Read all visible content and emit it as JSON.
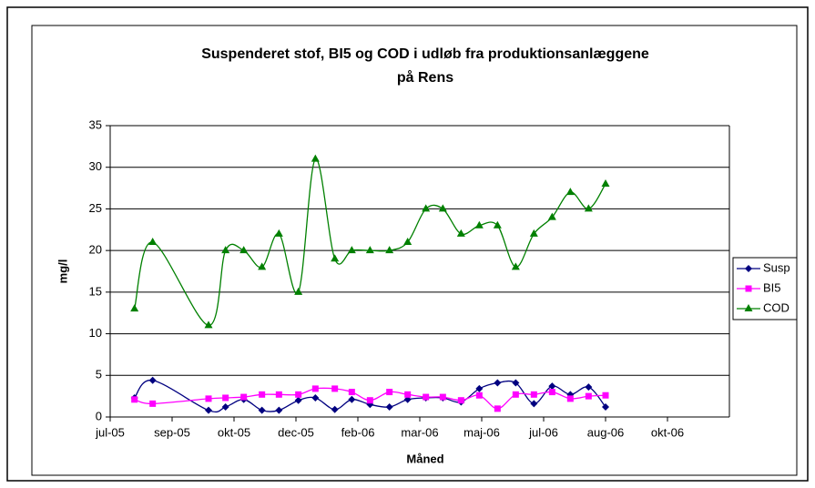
{
  "chart_data": {
    "type": "line",
    "title": [
      "Suspenderet stof, BI5 og COD i udløb fra produktionsanlæggene",
      "på Rens"
    ],
    "x_label": "Måned",
    "y_label": "mg/l",
    "x": [
      38554,
      38569,
      38615,
      38629,
      38644,
      38659,
      38673,
      38689,
      38703,
      38719,
      38733,
      38748,
      38764,
      38779,
      38794,
      38808,
      38823,
      38838,
      38853,
      38868,
      38883,
      38898,
      38913,
      38928,
      38942
    ],
    "series": [
      {
        "name": "Susp",
        "color": "#000080",
        "marker": "diamond",
        "values": [
          2.3,
          4.4,
          0.8,
          1.2,
          2.1,
          0.8,
          0.8,
          2.0,
          2.3,
          0.9,
          2.1,
          1.5,
          1.2,
          2.1,
          2.3,
          2.3,
          1.8,
          3.4,
          4.1,
          4.1,
          1.6,
          3.7,
          2.7,
          3.6,
          1.2
        ]
      },
      {
        "name": "BI5",
        "color": "#ff00ff",
        "marker": "square",
        "values": [
          2.1,
          1.6,
          2.2,
          2.3,
          2.4,
          2.7,
          2.7,
          2.7,
          3.4,
          3.4,
          3.0,
          2.0,
          3.0,
          2.7,
          2.4,
          2.4,
          2.0,
          2.6,
          1.0,
          2.7,
          2.7,
          3.0,
          2.2,
          2.5,
          2.6
        ]
      },
      {
        "name": "COD",
        "color": "#008000",
        "marker": "triangle",
        "values": [
          13,
          21,
          11,
          20,
          20,
          18,
          22,
          15,
          31,
          19,
          20,
          20,
          20,
          21,
          25,
          25,
          22,
          23,
          23,
          18,
          22,
          24,
          27,
          25,
          28
        ]
      }
    ],
    "xlim": [
      38534,
      39044
    ],
    "xticks": [
      {
        "value": 38534,
        "label": "jul-05"
      },
      {
        "value": 38585,
        "label": "sep-05"
      },
      {
        "value": 38636,
        "label": "okt-05"
      },
      {
        "value": 38687,
        "label": "dec-05"
      },
      {
        "value": 38738,
        "label": "feb-06"
      },
      {
        "value": 38789,
        "label": "mar-06"
      },
      {
        "value": 38840,
        "label": "maj-06"
      },
      {
        "value": 38891,
        "label": "jul-06"
      },
      {
        "value": 38942,
        "label": "aug-06"
      },
      {
        "value": 38993,
        "label": "okt-06"
      }
    ],
    "ylim": [
      0,
      35
    ],
    "yticks": [
      0,
      5,
      10,
      15,
      20,
      25,
      30,
      35
    ],
    "grid": true,
    "smooth": true,
    "legend": "right"
  }
}
